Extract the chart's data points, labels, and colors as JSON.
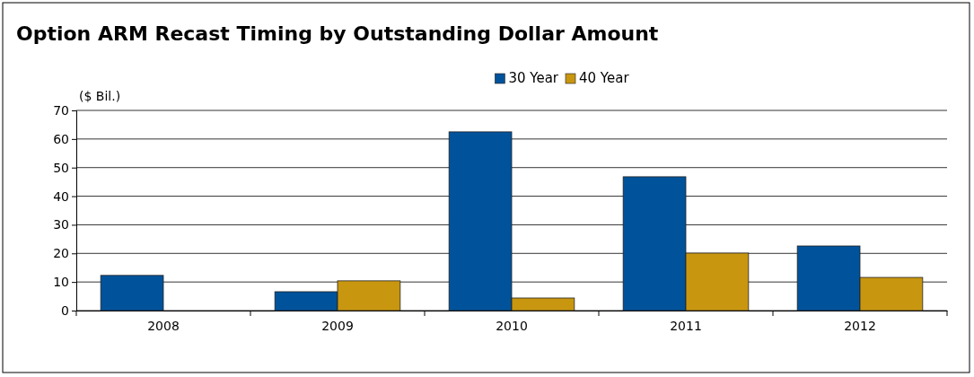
{
  "chart_data": {
    "type": "bar",
    "title": "Option ARM Recast Timing by Outstanding Dollar Amount",
    "ylabel": "($ Bil.)",
    "categories": [
      "2008",
      "2009",
      "2010",
      "2011",
      "2012"
    ],
    "series": [
      {
        "name": "30 Year",
        "color": "#00529b",
        "values": [
          12.3,
          6.6,
          62.5,
          46.8,
          22.6
        ]
      },
      {
        "name": "40 Year",
        "color": "#c8960f",
        "values": [
          0,
          10.4,
          4.4,
          20.1,
          11.6
        ]
      }
    ],
    "ylim": [
      0,
      70
    ],
    "yticks": [
      0,
      10,
      20,
      30,
      40,
      50,
      60,
      70
    ],
    "grid": "y",
    "legend": "top"
  }
}
